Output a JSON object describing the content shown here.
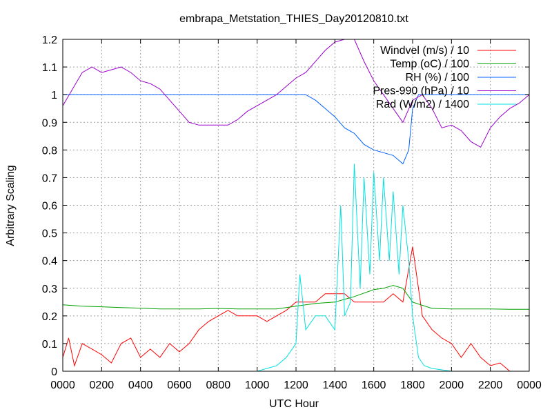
{
  "chart_data": {
    "type": "line",
    "title": "embrapa_Metstation_THIES_Day20120810.txt",
    "xlabel": "UTC Hour",
    "ylabel": "Arbitrary Scaling",
    "xlim": [
      0,
      24
    ],
    "ylim": [
      0,
      1.2
    ],
    "grid": true,
    "legend_position": "top-right",
    "x_ticks": [
      {
        "value": 0,
        "label": "0000"
      },
      {
        "value": 2,
        "label": "0200"
      },
      {
        "value": 4,
        "label": "0400"
      },
      {
        "value": 6,
        "label": "0600"
      },
      {
        "value": 8,
        "label": "0800"
      },
      {
        "value": 10,
        "label": "1000"
      },
      {
        "value": 12,
        "label": "1200"
      },
      {
        "value": 14,
        "label": "1400"
      },
      {
        "value": 16,
        "label": "1600"
      },
      {
        "value": 18,
        "label": "1800"
      },
      {
        "value": 20,
        "label": "2000"
      },
      {
        "value": 22,
        "label": "2200"
      },
      {
        "value": 24,
        "label": "0000"
      }
    ],
    "y_ticks": [
      {
        "value": 0,
        "label": "0"
      },
      {
        "value": 0.1,
        "label": "0.1"
      },
      {
        "value": 0.2,
        "label": "0.2"
      },
      {
        "value": 0.3,
        "label": "0.3"
      },
      {
        "value": 0.4,
        "label": "0.4"
      },
      {
        "value": 0.5,
        "label": "0.5"
      },
      {
        "value": 0.6,
        "label": "0.6"
      },
      {
        "value": 0.7,
        "label": "0.7"
      },
      {
        "value": 0.8,
        "label": "0.8"
      },
      {
        "value": 0.9,
        "label": "0.9"
      },
      {
        "value": 1,
        "label": "1"
      },
      {
        "value": 1.1,
        "label": "1.1"
      },
      {
        "value": 1.2,
        "label": "1.2"
      }
    ],
    "series": [
      {
        "name": "Windvel (m/s) / 10",
        "color": "#ff0000",
        "x": [
          0,
          0.3,
          0.6,
          1,
          1.5,
          2,
          2.5,
          3,
          3.5,
          4,
          4.5,
          5,
          5.5,
          6,
          6.5,
          7,
          7.5,
          8,
          8.5,
          9,
          9.5,
          10,
          10.5,
          11,
          11.5,
          12,
          12.5,
          13,
          13.5,
          14,
          14.5,
          15,
          15.5,
          16,
          16.5,
          17,
          17.5,
          18,
          18.5,
          19,
          19.5,
          20,
          20.5,
          21,
          21.5,
          22,
          22.5,
          23,
          23.5,
          24
        ],
        "y": [
          0.05,
          0.12,
          0.02,
          0.1,
          0.08,
          0.06,
          0.03,
          0.1,
          0.12,
          0.05,
          0.08,
          0.05,
          0.1,
          0.07,
          0.1,
          0.15,
          0.18,
          0.2,
          0.22,
          0.2,
          0.2,
          0.2,
          0.18,
          0.2,
          0.22,
          0.25,
          0.25,
          0.25,
          0.28,
          0.28,
          0.28,
          0.25,
          0.25,
          0.25,
          0.25,
          0.28,
          0.25,
          0.45,
          0.2,
          0.15,
          0.12,
          0.1,
          0.05,
          0.1,
          0.05,
          0.02,
          0.03,
          0,
          0,
          0
        ]
      },
      {
        "name": "Temp (oC) / 100",
        "color": "#00a000",
        "x": [
          0,
          1,
          2,
          3,
          4,
          5,
          6,
          7,
          8,
          9,
          10,
          11,
          12,
          13,
          14,
          15,
          16,
          16.5,
          17,
          17.5,
          18,
          19,
          20,
          21,
          22,
          23,
          24
        ],
        "y": [
          0.24,
          0.235,
          0.233,
          0.23,
          0.228,
          0.225,
          0.225,
          0.225,
          0.227,
          0.225,
          0.225,
          0.225,
          0.235,
          0.245,
          0.25,
          0.27,
          0.295,
          0.3,
          0.31,
          0.3,
          0.25,
          0.227,
          0.225,
          0.225,
          0.225,
          0.224,
          0.224
        ]
      },
      {
        "name": "RH (%) / 100",
        "color": "#0060ff",
        "x": [
          0,
          2,
          4,
          6,
          8,
          10,
          12,
          12.5,
          13,
          13.5,
          14,
          14.5,
          15,
          15.5,
          16,
          16.5,
          17,
          17.5,
          17.8,
          18,
          18.3,
          18.6,
          19,
          20,
          21,
          22,
          23,
          24
        ],
        "y": [
          1,
          1,
          1,
          1,
          1,
          1,
          1,
          1,
          0.98,
          0.95,
          0.92,
          0.88,
          0.86,
          0.82,
          0.8,
          0.79,
          0.78,
          0.75,
          0.8,
          0.95,
          1,
          1,
          1,
          1,
          1,
          1,
          1,
          1
        ]
      },
      {
        "name": "Pres-990 (hPa) / 10",
        "color": "#9900cc",
        "x": [
          0,
          0.5,
          1,
          1.5,
          2,
          2.5,
          3,
          3.5,
          4,
          4.5,
          5,
          5.5,
          6,
          6.5,
          7,
          7.5,
          8,
          8.5,
          9,
          9.5,
          10,
          10.5,
          11,
          11.5,
          12,
          12.5,
          13,
          13.5,
          14,
          14.5,
          15,
          15.5,
          16,
          16.5,
          17,
          17.5,
          18,
          18.5,
          19,
          19.5,
          20,
          20.5,
          21,
          21.5,
          22,
          22.5,
          23,
          23.5,
          24
        ],
        "y": [
          0.96,
          1.02,
          1.08,
          1.1,
          1.08,
          1.09,
          1.1,
          1.08,
          1.05,
          1.04,
          1.02,
          0.98,
          0.94,
          0.9,
          0.89,
          0.89,
          0.89,
          0.89,
          0.91,
          0.94,
          0.96,
          0.98,
          1.0,
          1.03,
          1.06,
          1.08,
          1.12,
          1.16,
          1.19,
          1.2,
          1.2,
          1.12,
          1.05,
          1.0,
          0.95,
          0.9,
          0.98,
          1.0,
          0.95,
          0.88,
          0.89,
          0.87,
          0.83,
          0.81,
          0.88,
          0.92,
          0.95,
          0.97,
          1.0
        ]
      },
      {
        "name": "Rad (W/m2) / 1400",
        "color": "#00e0e0",
        "x": [
          0,
          10,
          10.5,
          11,
          11.5,
          12,
          12.2,
          12.5,
          13,
          13.5,
          14,
          14.3,
          14.5,
          14.8,
          15,
          15.3,
          15.5,
          15.8,
          16,
          16.3,
          16.5,
          16.8,
          17,
          17.3,
          17.5,
          17.8,
          18,
          18.3,
          18.6,
          19,
          20,
          24
        ],
        "y": [
          0,
          0,
          0.01,
          0.02,
          0.05,
          0.1,
          0.35,
          0.15,
          0.2,
          0.2,
          0.15,
          0.6,
          0.2,
          0.25,
          0.75,
          0.3,
          0.7,
          0.35,
          0.72,
          0.4,
          0.7,
          0.4,
          0.65,
          0.35,
          0.6,
          0.4,
          0.2,
          0.05,
          0.02,
          0.01,
          0,
          0
        ]
      }
    ]
  }
}
